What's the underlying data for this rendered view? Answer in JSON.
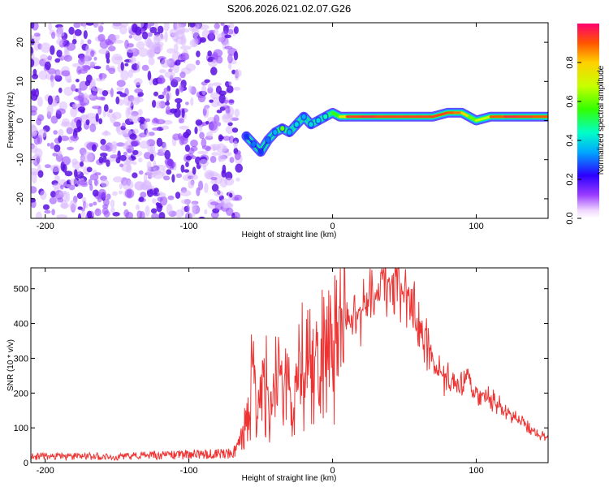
{
  "title": "S206.2026.021.02.07.G26",
  "chart_data": [
    {
      "type": "heatmap",
      "name": "spectrogram",
      "xlabel": "Height of straight line (km)",
      "ylabel": "Frequency (Hz)",
      "xlim": [
        -210,
        150
      ],
      "ylim": [
        -25,
        25
      ],
      "xticks": [
        -200,
        -100,
        0,
        100
      ],
      "xtick_labels": [
        "-200",
        "-100",
        "0",
        "100"
      ],
      "yticks": [
        -20,
        -10,
        0,
        10,
        20
      ],
      "ytick_labels": [
        "-20",
        "-10",
        "0",
        "10",
        "20"
      ],
      "noise_region_x": [
        -210,
        -65
      ],
      "track": {
        "x": [
          -60,
          -55,
          -50,
          -45,
          -40,
          -35,
          -30,
          -25,
          -20,
          -15,
          -10,
          -5,
          0,
          5,
          10,
          20,
          30,
          40,
          50,
          60,
          70,
          80,
          85,
          90,
          95,
          100,
          110,
          120,
          130,
          140,
          150
        ],
        "y": [
          -4,
          -6,
          -8,
          -5,
          -3,
          -2,
          -3,
          -1,
          1,
          -1,
          0,
          1,
          2,
          1,
          1,
          1,
          1,
          1,
          1,
          1,
          1,
          2,
          2,
          2,
          1,
          0,
          1,
          1,
          1,
          1,
          1
        ],
        "amplitude": [
          0.25,
          0.3,
          0.25,
          0.3,
          0.35,
          0.6,
          0.35,
          0.4,
          0.35,
          0.4,
          0.4,
          0.45,
          0.5,
          0.6,
          0.9,
          0.95,
          0.95,
          0.9,
          0.95,
          0.9,
          0.95,
          0.9,
          0.9,
          0.85,
          0.7,
          0.5,
          0.85,
          0.95,
          0.95,
          0.9,
          0.9
        ]
      },
      "colorbar": {
        "label": "Normalized spectral amplitude",
        "range": [
          0,
          1
        ],
        "ticks": [
          0.0,
          0.2,
          0.4,
          0.6,
          0.8
        ],
        "tick_labels": [
          "0.0",
          "0.2",
          "0.4",
          "0.6",
          "0.8"
        ]
      }
    },
    {
      "type": "line",
      "name": "snr",
      "xlabel": "Height of straight line (km)",
      "ylabel": "SNR (10 * v/v)",
      "xlim": [
        -210,
        150
      ],
      "ylim": [
        0,
        560
      ],
      "xticks": [
        -200,
        -100,
        0,
        100
      ],
      "xtick_labels": [
        "-200",
        "-100",
        "0",
        "100"
      ],
      "yticks": [
        0,
        100,
        200,
        300,
        400,
        500
      ],
      "ytick_labels": [
        "0",
        "100",
        "200",
        "300",
        "400",
        "500"
      ],
      "series": [
        {
          "name": "SNR",
          "color": "#ee3333",
          "x": [
            -210,
            -190,
            -170,
            -150,
            -130,
            -110,
            -90,
            -70,
            -66,
            -62,
            -58,
            -55,
            -52,
            -48,
            -45,
            -42,
            -38,
            -35,
            -30,
            -27,
            -25,
            -20,
            -15,
            -12,
            -8,
            -5,
            0,
            5,
            10,
            15,
            20,
            25,
            30,
            35,
            40,
            45,
            50,
            55,
            60,
            65,
            70,
            75,
            80,
            85,
            90,
            95,
            100,
            110,
            120,
            130,
            140,
            150
          ],
          "y": [
            18,
            17,
            18,
            17,
            20,
            22,
            25,
            27,
            40,
            80,
            180,
            250,
            170,
            230,
            210,
            160,
            250,
            230,
            210,
            140,
            300,
            290,
            310,
            270,
            320,
            340,
            340,
            380,
            420,
            430,
            440,
            480,
            500,
            510,
            510,
            505,
            480,
            440,
            390,
            340,
            290,
            265,
            235,
            220,
            210,
            240,
            200,
            180,
            155,
            120,
            90,
            70
          ]
        }
      ]
    }
  ]
}
